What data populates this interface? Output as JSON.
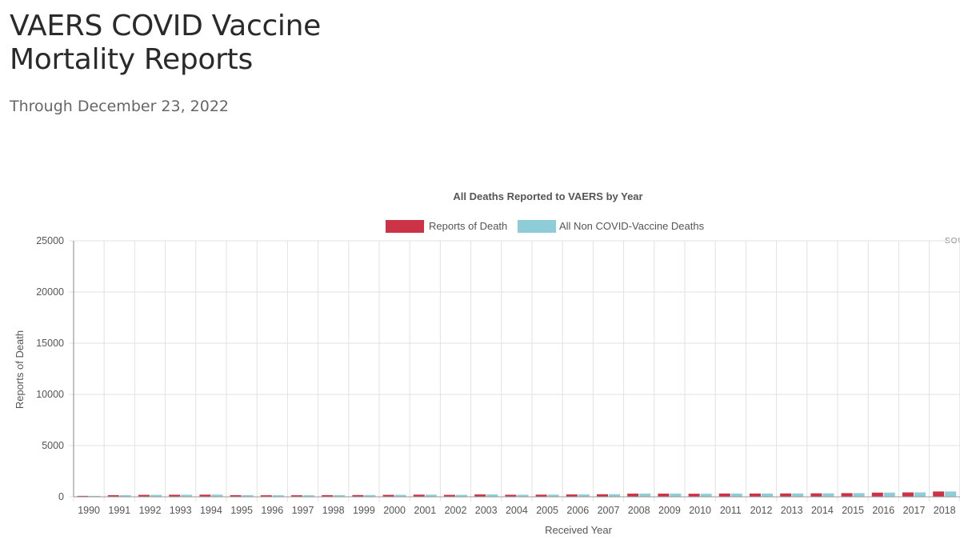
{
  "page": {
    "title_line1": "VAERS COVID Vaccine",
    "title_line2": "Mortality Reports",
    "subtitle": "Through December 23, 2022"
  },
  "colors": {
    "reports_of_death": "#cc3347",
    "non_covid_deaths": "#8ecdd7",
    "grid": "#e2e2e2",
    "axis": "#999999"
  },
  "chart_data": {
    "type": "bar",
    "title": "All Deaths Reported to VAERS by Year",
    "xlabel": "Received Year",
    "ylabel": "Reports of Death",
    "ylim": [
      0,
      25000
    ],
    "yticks": [
      0,
      5000,
      10000,
      15000,
      20000,
      25000
    ],
    "grid": true,
    "legend_position": "top",
    "source_label": "SOU",
    "categories": [
      "1990",
      "1991",
      "1992",
      "1993",
      "1994",
      "1995",
      "1996",
      "1997",
      "1998",
      "1999",
      "2000",
      "2001",
      "2002",
      "2003",
      "2004",
      "2005",
      "2006",
      "2007",
      "2008",
      "2009",
      "2010",
      "2011",
      "2012",
      "2013",
      "2014",
      "2015",
      "2016",
      "2017",
      "2018"
    ],
    "series": [
      {
        "name": "Reports of Death",
        "values": [
          90,
          160,
          190,
          200,
          210,
          160,
          150,
          150,
          160,
          170,
          190,
          210,
          190,
          230,
          200,
          210,
          230,
          250,
          310,
          310,
          300,
          320,
          320,
          330,
          340,
          360,
          410,
          430,
          520
        ]
      },
      {
        "name": "All Non COVID-Vaccine Deaths",
        "values": [
          90,
          160,
          190,
          200,
          210,
          160,
          150,
          150,
          160,
          170,
          190,
          210,
          190,
          230,
          200,
          210,
          230,
          250,
          310,
          310,
          300,
          320,
          320,
          330,
          340,
          360,
          410,
          430,
          520
        ]
      }
    ]
  }
}
